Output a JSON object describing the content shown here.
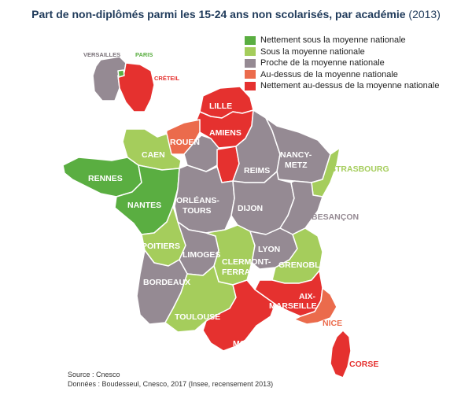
{
  "title": "Part de non-diplômés parmi les 15-24 ans non scolarisés, par académie",
  "title_year": "(2013)",
  "colors": {
    "nettement_sous": "#5aae41",
    "sous": "#a5cd5c",
    "proche": "#958a93",
    "au_dessus": "#eb6b4c",
    "nettement_au_dessus": "#e5312f"
  },
  "legend": [
    {
      "label": "Nettement sous la moyenne nationale",
      "color": "#5aae41"
    },
    {
      "label": "Sous la moyenne nationale",
      "color": "#a5cd5c"
    },
    {
      "label": "Proche de la moyenne nationale",
      "color": "#958a93"
    },
    {
      "label": "Au-dessus de la moyenne nationale",
      "color": "#eb6b4c"
    },
    {
      "label": "Nettement au-dessus de la moyenne nationale",
      "color": "#e5312f"
    }
  ],
  "academies": {
    "versailles": {
      "label": "VERSAILLES",
      "category": "Proche de la moyenne nationale"
    },
    "paris": {
      "label": "PARIS",
      "category": "Nettement sous la moyenne nationale"
    },
    "creteil": {
      "label": "CRÉTEIL",
      "category": "Nettement au-dessus de la moyenne nationale"
    },
    "lille": {
      "label": "LILLE",
      "category": "Nettement au-dessus de la moyenne nationale"
    },
    "amiens": {
      "label": "AMIENS",
      "category": "Nettement au-dessus de la moyenne nationale"
    },
    "rouen": {
      "label": "ROUEN",
      "category": "Au-dessus de la moyenne nationale"
    },
    "caen": {
      "label": "CAEN",
      "category": "Sous la moyenne nationale"
    },
    "rennes": {
      "label": "RENNES",
      "category": "Nettement sous la moyenne nationale"
    },
    "nantes": {
      "label": "NANTES",
      "category": "Nettement sous la moyenne nationale"
    },
    "reims": {
      "label": "REIMS",
      "category": "Proche de la moyenne nationale"
    },
    "nancy_metz": {
      "label_1": "NANCY-",
      "label_2": "METZ",
      "category": "Proche de la moyenne nationale"
    },
    "strasbourg": {
      "label": "STRASBOURG",
      "category": "Sous la moyenne nationale"
    },
    "orleans_tours": {
      "label_1": "ORLÉANS-",
      "label_2": "TOURS",
      "category": "Proche de la moyenne nationale"
    },
    "dijon": {
      "label": "DIJON",
      "category": "Proche de la moyenne nationale"
    },
    "besancon": {
      "label": "BESANÇON",
      "category": "Proche de la moyenne nationale"
    },
    "poitiers": {
      "label": "POITIERS",
      "category": "Sous la moyenne nationale"
    },
    "limoges": {
      "label": "LIMOGES",
      "category": "Proche de la moyenne nationale"
    },
    "clermont_ferrand": {
      "label_1": "CLERMONT-",
      "label_2": "FERRAND",
      "category": "Sous la moyenne nationale"
    },
    "lyon": {
      "label": "LYON",
      "category": "Proche de la moyenne nationale"
    },
    "grenoble": {
      "label": "GRENOBLE",
      "category": "Sous la moyenne nationale"
    },
    "bordeaux": {
      "label": "BORDEAUX",
      "category": "Proche de la moyenne nationale"
    },
    "toulouse": {
      "label": "TOULOUSE",
      "category": "Sous la moyenne nationale"
    },
    "aix_marseille": {
      "label_1": "AIX-",
      "label_2": "MARSEILLE",
      "category": "Nettement au-dessus de la moyenne nationale"
    },
    "nice": {
      "label": "NICE",
      "category": "Au-dessus de la moyenne nationale"
    },
    "montpellier": {
      "label": "MONTPELLIER",
      "category": "Nettement au-dessus de la moyenne nationale"
    },
    "corse": {
      "label": "CORSE",
      "category": "Nettement au-dessus de la moyenne nationale"
    }
  },
  "source": {
    "line1": "Source : Cnesco",
    "line2": "Données : Boudesseul, Cnesco, 2017 (Insee, recensement 2013)"
  }
}
